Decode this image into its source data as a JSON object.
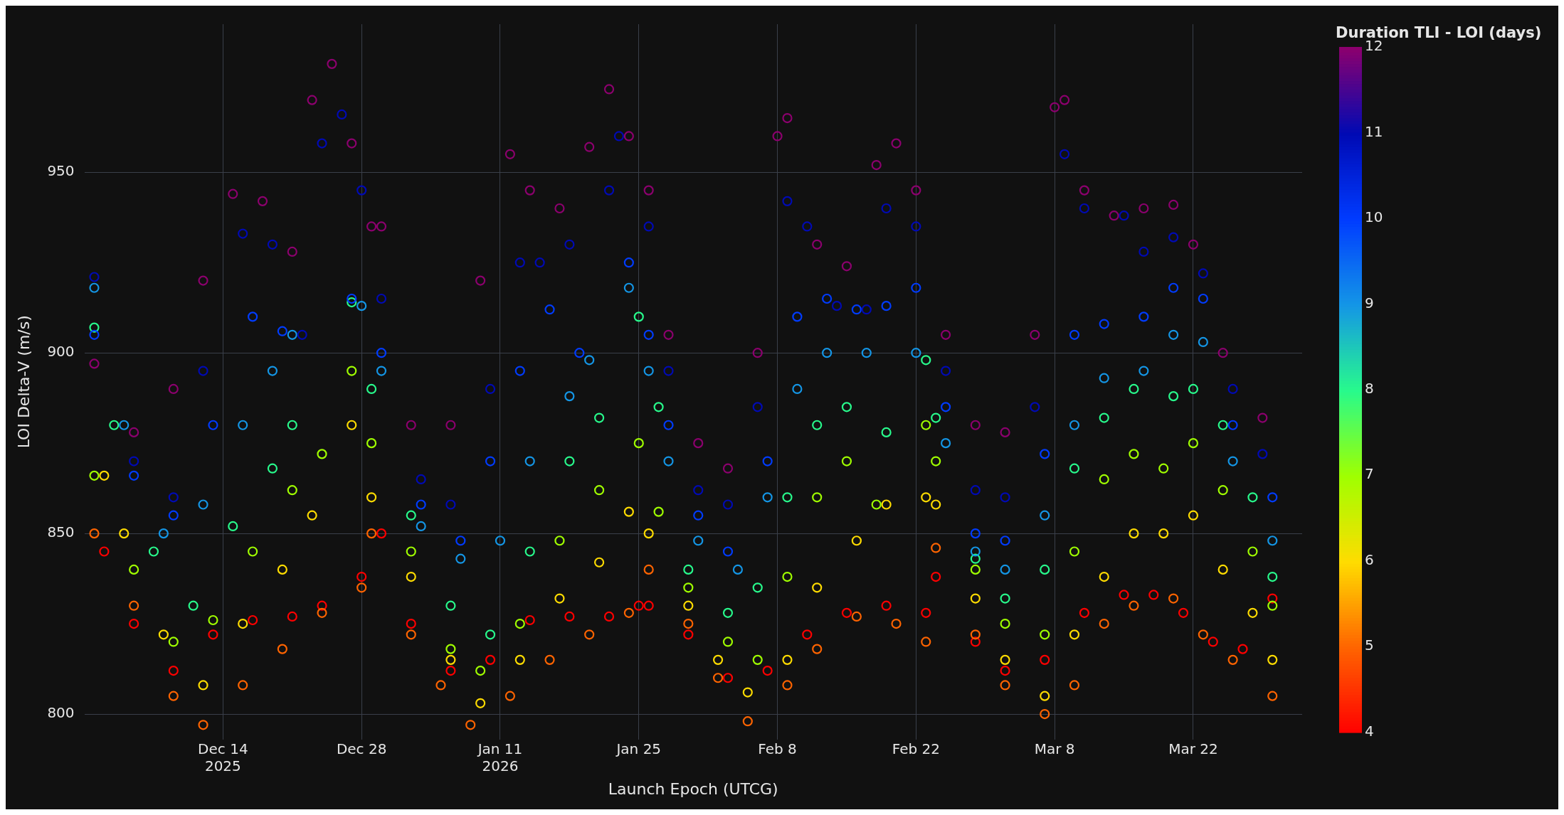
{
  "chart_data": {
    "type": "scatter",
    "xlabel": "Launch Epoch (UTCG)",
    "ylabel": "LOI Delta-V (m/s)",
    "clabel": "Duration TLI - LOI (days)",
    "clim": [
      4,
      12
    ],
    "cticks": [
      4,
      5,
      6,
      7,
      8,
      9,
      10,
      11,
      12
    ],
    "xlim": [
      "2025-11-30",
      "2026-04-02"
    ],
    "ylim": [
      793,
      991
    ],
    "yticks": [
      800,
      850,
      900,
      950
    ],
    "xticks": [
      {
        "value": "2025-12-14",
        "label": "Dec 14\n2025"
      },
      {
        "value": "2025-12-28",
        "label": "Dec 28"
      },
      {
        "value": "2026-01-11",
        "label": "Jan 11\n2026"
      },
      {
        "value": "2026-01-25",
        "label": "Jan 25"
      },
      {
        "value": "2026-02-08",
        "label": "Feb 8"
      },
      {
        "value": "2026-02-22",
        "label": "Feb 22"
      },
      {
        "value": "2026-03-08",
        "label": "Mar 8"
      },
      {
        "value": "2026-03-22",
        "label": "Mar 22"
      }
    ],
    "grid": true,
    "legend": false,
    "marker": "circle",
    "series": [
      {
        "x": [
          "2025-12-01",
          "2025-12-05",
          "2025-12-09",
          "2025-12-12",
          "2025-12-15",
          "2025-12-18",
          "2025-12-21",
          "2025-12-23",
          "2025-12-25",
          "2025-12-27",
          "2025-12-29",
          "2025-12-30",
          "2026-01-02",
          "2026-01-06",
          "2026-01-09",
          "2026-01-12",
          "2026-01-14",
          "2026-01-17",
          "2026-01-20",
          "2026-01-22",
          "2026-01-24",
          "2026-01-26",
          "2026-01-28",
          "2026-01-31",
          "2026-02-03",
          "2026-02-06",
          "2026-02-08",
          "2026-02-09",
          "2026-02-12",
          "2026-02-15",
          "2026-02-18",
          "2026-02-20",
          "2026-02-22",
          "2026-02-25",
          "2026-02-28",
          "2026-03-03",
          "2026-03-06",
          "2026-03-08",
          "2026-03-09",
          "2026-03-11",
          "2026-03-14",
          "2026-03-17",
          "2026-03-20",
          "2026-03-22",
          "2026-03-25",
          "2026-03-29"
        ],
        "values": [
          897,
          878,
          890,
          920,
          944,
          942,
          928,
          970,
          980,
          958,
          935,
          935,
          880,
          880,
          920,
          955,
          945,
          940,
          957,
          973,
          960,
          945,
          905,
          875,
          868,
          900,
          960,
          965,
          930,
          924,
          952,
          958,
          945,
          905,
          880,
          878,
          905,
          968,
          970,
          945,
          938,
          940,
          941,
          930,
          900,
          882
        ],
        "cvalues": [
          12,
          12,
          12,
          12,
          12,
          12,
          12,
          12,
          12,
          12,
          12,
          12,
          12,
          12,
          12,
          12,
          12,
          12,
          12,
          12,
          12,
          12,
          12,
          12,
          12,
          12,
          12,
          12,
          12,
          12,
          12,
          12,
          12,
          12,
          12,
          12,
          12,
          12,
          12,
          12,
          12,
          12,
          12,
          12,
          12,
          12
        ]
      },
      {
        "x": [
          "2025-12-01",
          "2025-12-05",
          "2025-12-09",
          "2025-12-12",
          "2025-12-16",
          "2025-12-19",
          "2025-12-22",
          "2025-12-24",
          "2025-12-26",
          "2025-12-28",
          "2025-12-30",
          "2026-01-03",
          "2026-01-06",
          "2026-01-10",
          "2026-01-13",
          "2026-01-15",
          "2026-01-18",
          "2026-01-22",
          "2026-01-23",
          "2026-01-26",
          "2026-01-28",
          "2026-01-31",
          "2026-02-03",
          "2026-02-06",
          "2026-02-09",
          "2026-02-11",
          "2026-02-14",
          "2026-02-17",
          "2026-02-19",
          "2026-02-22",
          "2026-02-25",
          "2026-02-28",
          "2026-03-03",
          "2026-03-06",
          "2026-03-09",
          "2026-03-11",
          "2026-03-15",
          "2026-03-17",
          "2026-03-20",
          "2026-03-23",
          "2026-03-26",
          "2026-03-29"
        ],
        "values": [
          921,
          870,
          860,
          895,
          933,
          930,
          905,
          958,
          966,
          945,
          915,
          865,
          858,
          890,
          925,
          925,
          930,
          945,
          960,
          935,
          895,
          862,
          858,
          885,
          942,
          935,
          913,
          912,
          940,
          935,
          895,
          862,
          860,
          885,
          955,
          940,
          938,
          928,
          932,
          922,
          890,
          872
        ],
        "cvalues": [
          11,
          11,
          11,
          11,
          11,
          11,
          11,
          11,
          11,
          11,
          11,
          11,
          11,
          11,
          11,
          11,
          11,
          11,
          11,
          11,
          11,
          11,
          11,
          11,
          11,
          11,
          11,
          11,
          11,
          11,
          11,
          11,
          11,
          11,
          11,
          11,
          11,
          11,
          11,
          11,
          11,
          11
        ]
      },
      {
        "x": [
          "2025-12-01",
          "2025-12-05",
          "2025-12-09",
          "2025-12-13",
          "2025-12-17",
          "2025-12-20",
          "2025-12-27",
          "2025-12-30",
          "2026-01-03",
          "2026-01-07",
          "2026-01-10",
          "2026-01-13",
          "2026-01-16",
          "2026-01-19",
          "2026-01-24",
          "2026-01-26",
          "2026-01-28",
          "2026-01-31",
          "2026-02-03",
          "2026-02-07",
          "2026-02-10",
          "2026-02-13",
          "2026-02-16",
          "2026-02-19",
          "2026-02-22",
          "2026-02-25",
          "2026-02-28",
          "2026-03-03",
          "2026-03-07",
          "2026-03-10",
          "2026-03-13",
          "2026-03-17",
          "2026-03-20",
          "2026-03-23",
          "2026-03-26",
          "2026-03-30"
        ],
        "values": [
          905,
          866,
          855,
          880,
          910,
          906,
          915,
          900,
          858,
          848,
          870,
          895,
          912,
          900,
          925,
          905,
          880,
          855,
          845,
          870,
          910,
          915,
          912,
          913,
          918,
          885,
          850,
          848,
          872,
          905,
          908,
          910,
          918,
          915,
          880,
          860
        ],
        "cvalues": [
          10,
          10,
          10,
          10,
          10,
          10,
          10,
          10,
          10,
          10,
          10,
          10,
          10,
          10,
          10,
          10,
          10,
          10,
          10,
          10,
          10,
          10,
          10,
          10,
          10,
          10,
          10,
          10,
          10,
          10,
          10,
          10,
          10,
          10,
          10,
          10
        ]
      },
      {
        "x": [
          "2025-12-01",
          "2025-12-04",
          "2025-12-08",
          "2025-12-12",
          "2025-12-16",
          "2025-12-19",
          "2025-12-21",
          "2025-12-28",
          "2025-12-30",
          "2026-01-03",
          "2026-01-07",
          "2026-01-11",
          "2026-01-14",
          "2026-01-18",
          "2026-01-20",
          "2026-01-24",
          "2026-01-26",
          "2026-01-28",
          "2026-01-31",
          "2026-02-04",
          "2026-02-07",
          "2026-02-10",
          "2026-02-13",
          "2026-02-17",
          "2026-02-22",
          "2026-02-25",
          "2026-02-28",
          "2026-03-03",
          "2026-03-07",
          "2026-03-10",
          "2026-03-13",
          "2026-03-17",
          "2026-03-20",
          "2026-03-23",
          "2026-03-26",
          "2026-03-30"
        ],
        "values": [
          918,
          880,
          850,
          858,
          880,
          895,
          905,
          913,
          895,
          852,
          843,
          848,
          870,
          888,
          898,
          918,
          895,
          870,
          848,
          840,
          860,
          890,
          900,
          900,
          900,
          875,
          845,
          840,
          855,
          880,
          893,
          895,
          905,
          903,
          870,
          848
        ],
        "cvalues": [
          9,
          9,
          9,
          9,
          9,
          9,
          9,
          9,
          9,
          9,
          9,
          9,
          9,
          9,
          9,
          9,
          9,
          9,
          9,
          9,
          9,
          9,
          9,
          9,
          9,
          9,
          9,
          9,
          9,
          9,
          9,
          9,
          9,
          9,
          9,
          9
        ]
      },
      {
        "x": [
          "2025-12-01",
          "2025-12-03",
          "2025-12-07",
          "2025-12-11",
          "2025-12-15",
          "2025-12-19",
          "2025-12-21",
          "2025-12-27",
          "2025-12-29",
          "2026-01-02",
          "2026-01-06",
          "2026-01-10",
          "2026-01-14",
          "2026-01-18",
          "2026-01-21",
          "2026-01-25",
          "2026-01-27",
          "2026-01-30",
          "2026-02-03",
          "2026-02-06",
          "2026-02-09",
          "2026-02-12",
          "2026-02-15",
          "2026-02-19",
          "2026-02-23",
          "2026-02-24",
          "2026-02-28",
          "2026-03-03",
          "2026-03-07",
          "2026-03-10",
          "2026-03-13",
          "2026-03-16",
          "2026-03-20",
          "2026-03-22",
          "2026-03-25",
          "2026-03-28",
          "2026-03-30"
        ],
        "values": [
          907,
          880,
          845,
          830,
          852,
          868,
          880,
          914,
          890,
          855,
          830,
          822,
          845,
          870,
          882,
          910,
          885,
          840,
          828,
          835,
          860,
          880,
          885,
          878,
          898,
          882,
          843,
          832,
          840,
          868,
          882,
          890,
          888,
          890,
          880,
          860,
          838
        ],
        "cvalues": [
          8,
          8,
          8,
          8,
          8,
          8,
          8,
          8,
          8,
          8,
          8,
          8,
          8,
          8,
          8,
          8,
          8,
          8,
          8,
          8,
          8,
          8,
          8,
          8,
          8,
          8,
          8,
          8,
          8,
          8,
          8,
          8,
          8,
          8,
          8,
          8,
          8
        ]
      },
      {
        "x": [
          "2025-12-01",
          "2025-12-05",
          "2025-12-09",
          "2025-12-13",
          "2025-12-17",
          "2025-12-21",
          "2025-12-24",
          "2025-12-27",
          "2025-12-29",
          "2026-01-02",
          "2026-01-06",
          "2026-01-09",
          "2026-01-13",
          "2026-01-17",
          "2026-01-21",
          "2026-01-25",
          "2026-01-27",
          "2026-01-30",
          "2026-02-03",
          "2026-02-06",
          "2026-02-09",
          "2026-02-12",
          "2026-02-15",
          "2026-02-18",
          "2026-02-23",
          "2026-02-24",
          "2026-02-28",
          "2026-03-03",
          "2026-03-07",
          "2026-03-10",
          "2026-03-13",
          "2026-03-16",
          "2026-03-19",
          "2026-03-22",
          "2026-03-25",
          "2026-03-28",
          "2026-03-30"
        ],
        "values": [
          866,
          840,
          820,
          826,
          845,
          862,
          872,
          895,
          875,
          845,
          818,
          812,
          825,
          848,
          862,
          875,
          856,
          835,
          820,
          815,
          838,
          860,
          870,
          858,
          880,
          870,
          840,
          825,
          822,
          845,
          865,
          872,
          868,
          875,
          862,
          845,
          830
        ],
        "cvalues": [
          7,
          7,
          7,
          7,
          7,
          7,
          7,
          7,
          7,
          7,
          7,
          7,
          7,
          7,
          7,
          7,
          7,
          7,
          7,
          7,
          7,
          7,
          7,
          7,
          7,
          7,
          7,
          7,
          7,
          7,
          7,
          7,
          7,
          7,
          7,
          7,
          7
        ]
      },
      {
        "x": [
          "2025-12-02",
          "2025-12-04",
          "2025-12-08",
          "2025-12-12",
          "2025-12-16",
          "2025-12-20",
          "2025-12-23",
          "2025-12-27",
          "2025-12-29",
          "2026-01-02",
          "2026-01-06",
          "2026-01-09",
          "2026-01-13",
          "2026-01-17",
          "2026-01-21",
          "2026-01-24",
          "2026-01-26",
          "2026-01-30",
          "2026-02-02",
          "2026-02-05",
          "2026-02-09",
          "2026-02-12",
          "2026-02-16",
          "2026-02-19",
          "2026-02-23",
          "2026-02-24",
          "2026-02-28",
          "2026-03-03",
          "2026-03-07",
          "2026-03-10",
          "2026-03-13",
          "2026-03-16",
          "2026-03-19",
          "2026-03-22",
          "2026-03-25",
          "2026-03-28",
          "2026-03-30"
        ],
        "values": [
          866,
          850,
          822,
          808,
          825,
          840,
          855,
          880,
          860,
          838,
          815,
          803,
          815,
          832,
          842,
          856,
          850,
          830,
          815,
          806,
          815,
          835,
          848,
          858,
          860,
          858,
          832,
          815,
          805,
          822,
          838,
          850,
          850,
          855,
          840,
          828,
          815
        ],
        "cvalues": [
          6,
          6,
          6,
          6,
          6,
          6,
          6,
          6,
          6,
          6,
          6,
          6,
          6,
          6,
          6,
          6,
          6,
          6,
          6,
          6,
          6,
          6,
          6,
          6,
          6,
          6,
          6,
          6,
          6,
          6,
          6,
          6,
          6,
          6,
          6,
          6,
          6
        ]
      },
      {
        "x": [
          "2025-12-01",
          "2025-12-05",
          "2025-12-09",
          "2025-12-12",
          "2025-12-16",
          "2025-12-20",
          "2025-12-24",
          "2025-12-28",
          "2025-12-29",
          "2026-01-02",
          "2026-01-05",
          "2026-01-08",
          "2026-01-12",
          "2026-01-16",
          "2026-01-20",
          "2026-01-24",
          "2026-01-26",
          "2026-01-30",
          "2026-02-02",
          "2026-02-05",
          "2026-02-09",
          "2026-02-12",
          "2026-02-16",
          "2026-02-20",
          "2026-02-23",
          "2026-02-24",
          "2026-02-28",
          "2026-03-03",
          "2026-03-07",
          "2026-03-10",
          "2026-03-13",
          "2026-03-16",
          "2026-03-20",
          "2026-03-23",
          "2026-03-26",
          "2026-03-30"
        ],
        "values": [
          850,
          830,
          805,
          797,
          808,
          818,
          828,
          835,
          850,
          822,
          808,
          797,
          805,
          815,
          822,
          828,
          840,
          825,
          810,
          798,
          808,
          818,
          827,
          825,
          820,
          846,
          822,
          808,
          800,
          808,
          825,
          830,
          832,
          822,
          815,
          805
        ],
        "cvalues": [
          5,
          5,
          5,
          5,
          5,
          5,
          5,
          5,
          5,
          5,
          5,
          5,
          5,
          5,
          5,
          5,
          5,
          5,
          5,
          5,
          5,
          5,
          5,
          5,
          5,
          5,
          5,
          5,
          5,
          5,
          5,
          5,
          5,
          5,
          5,
          5
        ]
      },
      {
        "x": [
          "2025-12-02",
          "2025-12-05",
          "2025-12-09",
          "2025-12-13",
          "2025-12-17",
          "2025-12-21",
          "2025-12-24",
          "2025-12-28",
          "2025-12-30",
          "2026-01-02",
          "2026-01-06",
          "2026-01-10",
          "2026-01-14",
          "2026-01-18",
          "2026-01-22",
          "2026-01-25",
          "2026-01-26",
          "2026-01-30",
          "2026-02-03",
          "2026-02-07",
          "2026-02-11",
          "2026-02-15",
          "2026-02-19",
          "2026-02-23",
          "2026-02-24",
          "2026-02-28",
          "2026-03-03",
          "2026-03-07",
          "2026-03-11",
          "2026-03-15",
          "2026-03-18",
          "2026-03-21",
          "2026-03-24",
          "2026-03-27",
          "2026-03-30"
        ],
        "values": [
          845,
          825,
          812,
          822,
          826,
          827,
          830,
          838,
          850,
          825,
          812,
          815,
          826,
          827,
          827,
          830,
          830,
          822,
          810,
          812,
          822,
          828,
          830,
          828,
          838,
          820,
          812,
          815,
          828,
          833,
          833,
          828,
          820,
          818,
          832
        ],
        "cvalues": [
          4,
          4,
          4,
          4,
          4,
          4,
          4,
          4,
          4,
          4,
          4,
          4,
          4,
          4,
          4,
          4,
          4,
          4,
          4,
          4,
          4,
          4,
          4,
          4,
          4,
          4,
          4,
          4,
          4,
          4,
          4,
          4,
          4,
          4,
          4
        ]
      }
    ]
  }
}
